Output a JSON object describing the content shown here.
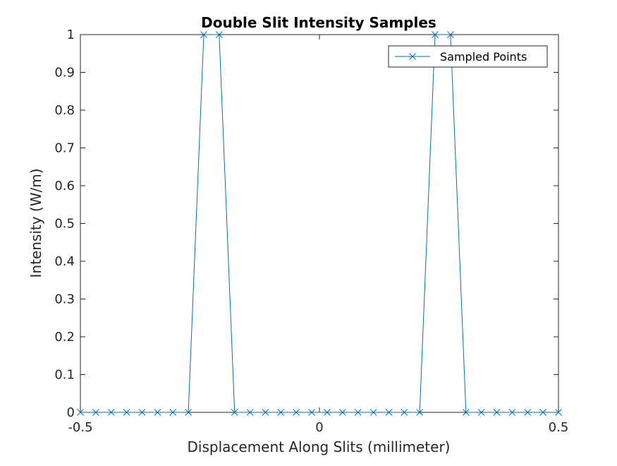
{
  "chart_data": {
    "type": "line",
    "title": "Double Slit Intensity Samples",
    "xlabel": "Displacement Along Slits (millimeter)",
    "ylabel": "Intensity (W/m)",
    "xlim": [
      -0.5,
      0.5
    ],
    "ylim": [
      0,
      1
    ],
    "xticks": [
      -0.5,
      0,
      0.5
    ],
    "xtick_labels": [
      "-0.5",
      "0",
      "0.5"
    ],
    "yticks": [
      0,
      0.1,
      0.2,
      0.3,
      0.4,
      0.5,
      0.6,
      0.7,
      0.8,
      0.9,
      1
    ],
    "ytick_labels": [
      "0",
      "0.1",
      "0.2",
      "0.3",
      "0.4",
      "0.5",
      "0.6",
      "0.7",
      "0.8",
      "0.9",
      "1"
    ],
    "grid": false,
    "legend_position": "top-right",
    "series": [
      {
        "name": "Sampled Points",
        "color": "#0072BD",
        "marker": "x",
        "x": [
          -0.5,
          -0.4677,
          -0.4355,
          -0.4032,
          -0.371,
          -0.3387,
          -0.3065,
          -0.2742,
          -0.2419,
          -0.2097,
          -0.1774,
          -0.1452,
          -0.1129,
          -0.0806,
          -0.0484,
          -0.0161,
          0.0161,
          0.0484,
          0.0806,
          0.1129,
          0.1452,
          0.1774,
          0.2097,
          0.2419,
          0.2742,
          0.3065,
          0.3387,
          0.371,
          0.4032,
          0.4355,
          0.4677,
          0.5
        ],
        "y": [
          0,
          0,
          0,
          0,
          0,
          0,
          0,
          0,
          1,
          1,
          0,
          0,
          0,
          0,
          0,
          0,
          0,
          0,
          0,
          0,
          0,
          0,
          0,
          1,
          1,
          0,
          0,
          0,
          0,
          0,
          0,
          0
        ]
      }
    ]
  }
}
